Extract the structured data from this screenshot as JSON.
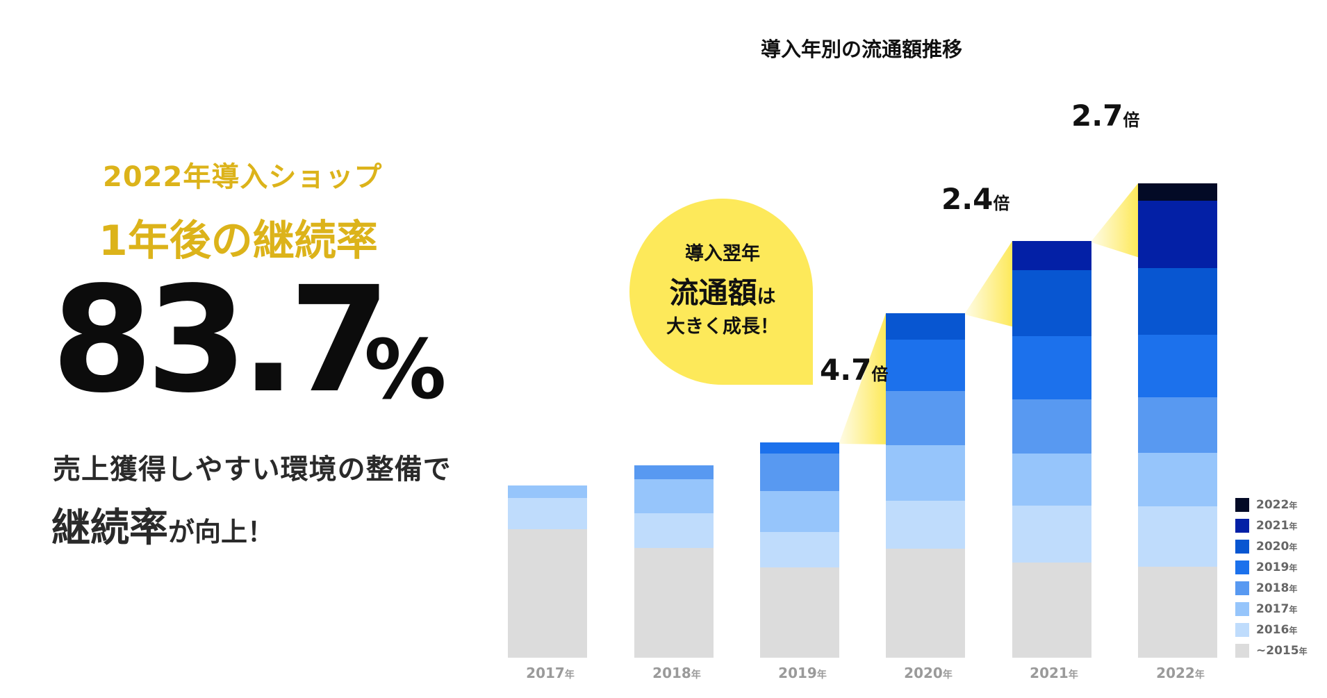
{
  "hero": {
    "line1_a": "2022",
    "line1_b": "年導入ショップ",
    "line2": "1年後の継続率",
    "rate_number": "83.7",
    "rate_unit": "%",
    "body1": "売上獲得しやすい環境の整備で",
    "body2_big": "継続率",
    "body2_small": "が向上！"
  },
  "callout": {
    "line1": "導入翌年",
    "line2_big": "流通額",
    "line2_small": "は",
    "line3": "大きく成長！"
  },
  "multipliers": [
    {
      "num": "4.7",
      "unit": "倍"
    },
    {
      "num": "2.4",
      "unit": "倍"
    },
    {
      "num": "2.7",
      "unit": "倍"
    }
  ],
  "colors": {
    "highlight_yellow": "#fde95a",
    "accent_gold": "#dcb31a"
  },
  "chart_data": {
    "type": "bar",
    "stacked": true,
    "title": "導入年別の流通額推移",
    "xlabel": "",
    "ylabel": "",
    "categories": [
      {
        "year": "2017",
        "unit": "年"
      },
      {
        "year": "2018",
        "unit": "年"
      },
      {
        "year": "2019",
        "unit": "年"
      },
      {
        "year": "2020",
        "unit": "年"
      },
      {
        "year": "2021",
        "unit": "年"
      },
      {
        "year": "2022",
        "unit": "年"
      }
    ],
    "series": [
      {
        "name": "~2015",
        "unit": "年",
        "color": "#dcdcdc",
        "values": [
          185,
          158,
          130,
          157,
          137,
          131
        ]
      },
      {
        "name": "2016",
        "unit": "年",
        "color": "#bfdcfc",
        "values": [
          45,
          50,
          51,
          69,
          82,
          87
        ]
      },
      {
        "name": "2017",
        "unit": "年",
        "color": "#96c5fb",
        "values": [
          18,
          49,
          59,
          80,
          75,
          77
        ]
      },
      {
        "name": "2018",
        "unit": "年",
        "color": "#5899f1",
        "values": [
          0,
          20,
          54,
          78,
          78,
          80
        ]
      },
      {
        "name": "2019",
        "unit": "年",
        "color": "#1c71ec",
        "values": [
          0,
          0,
          16,
          74,
          91,
          90
        ]
      },
      {
        "name": "2020",
        "unit": "年",
        "color": "#0856d1",
        "values": [
          0,
          0,
          0,
          38,
          95,
          96
        ]
      },
      {
        "name": "2021",
        "unit": "年",
        "color": "#0320a6",
        "values": [
          0,
          0,
          0,
          0,
          42,
          97
        ]
      },
      {
        "name": "2022",
        "unit": "年",
        "color": "#030a26",
        "values": [
          0,
          0,
          0,
          0,
          0,
          25
        ]
      }
    ],
    "legend_position": "bottom-right",
    "grid": false
  }
}
